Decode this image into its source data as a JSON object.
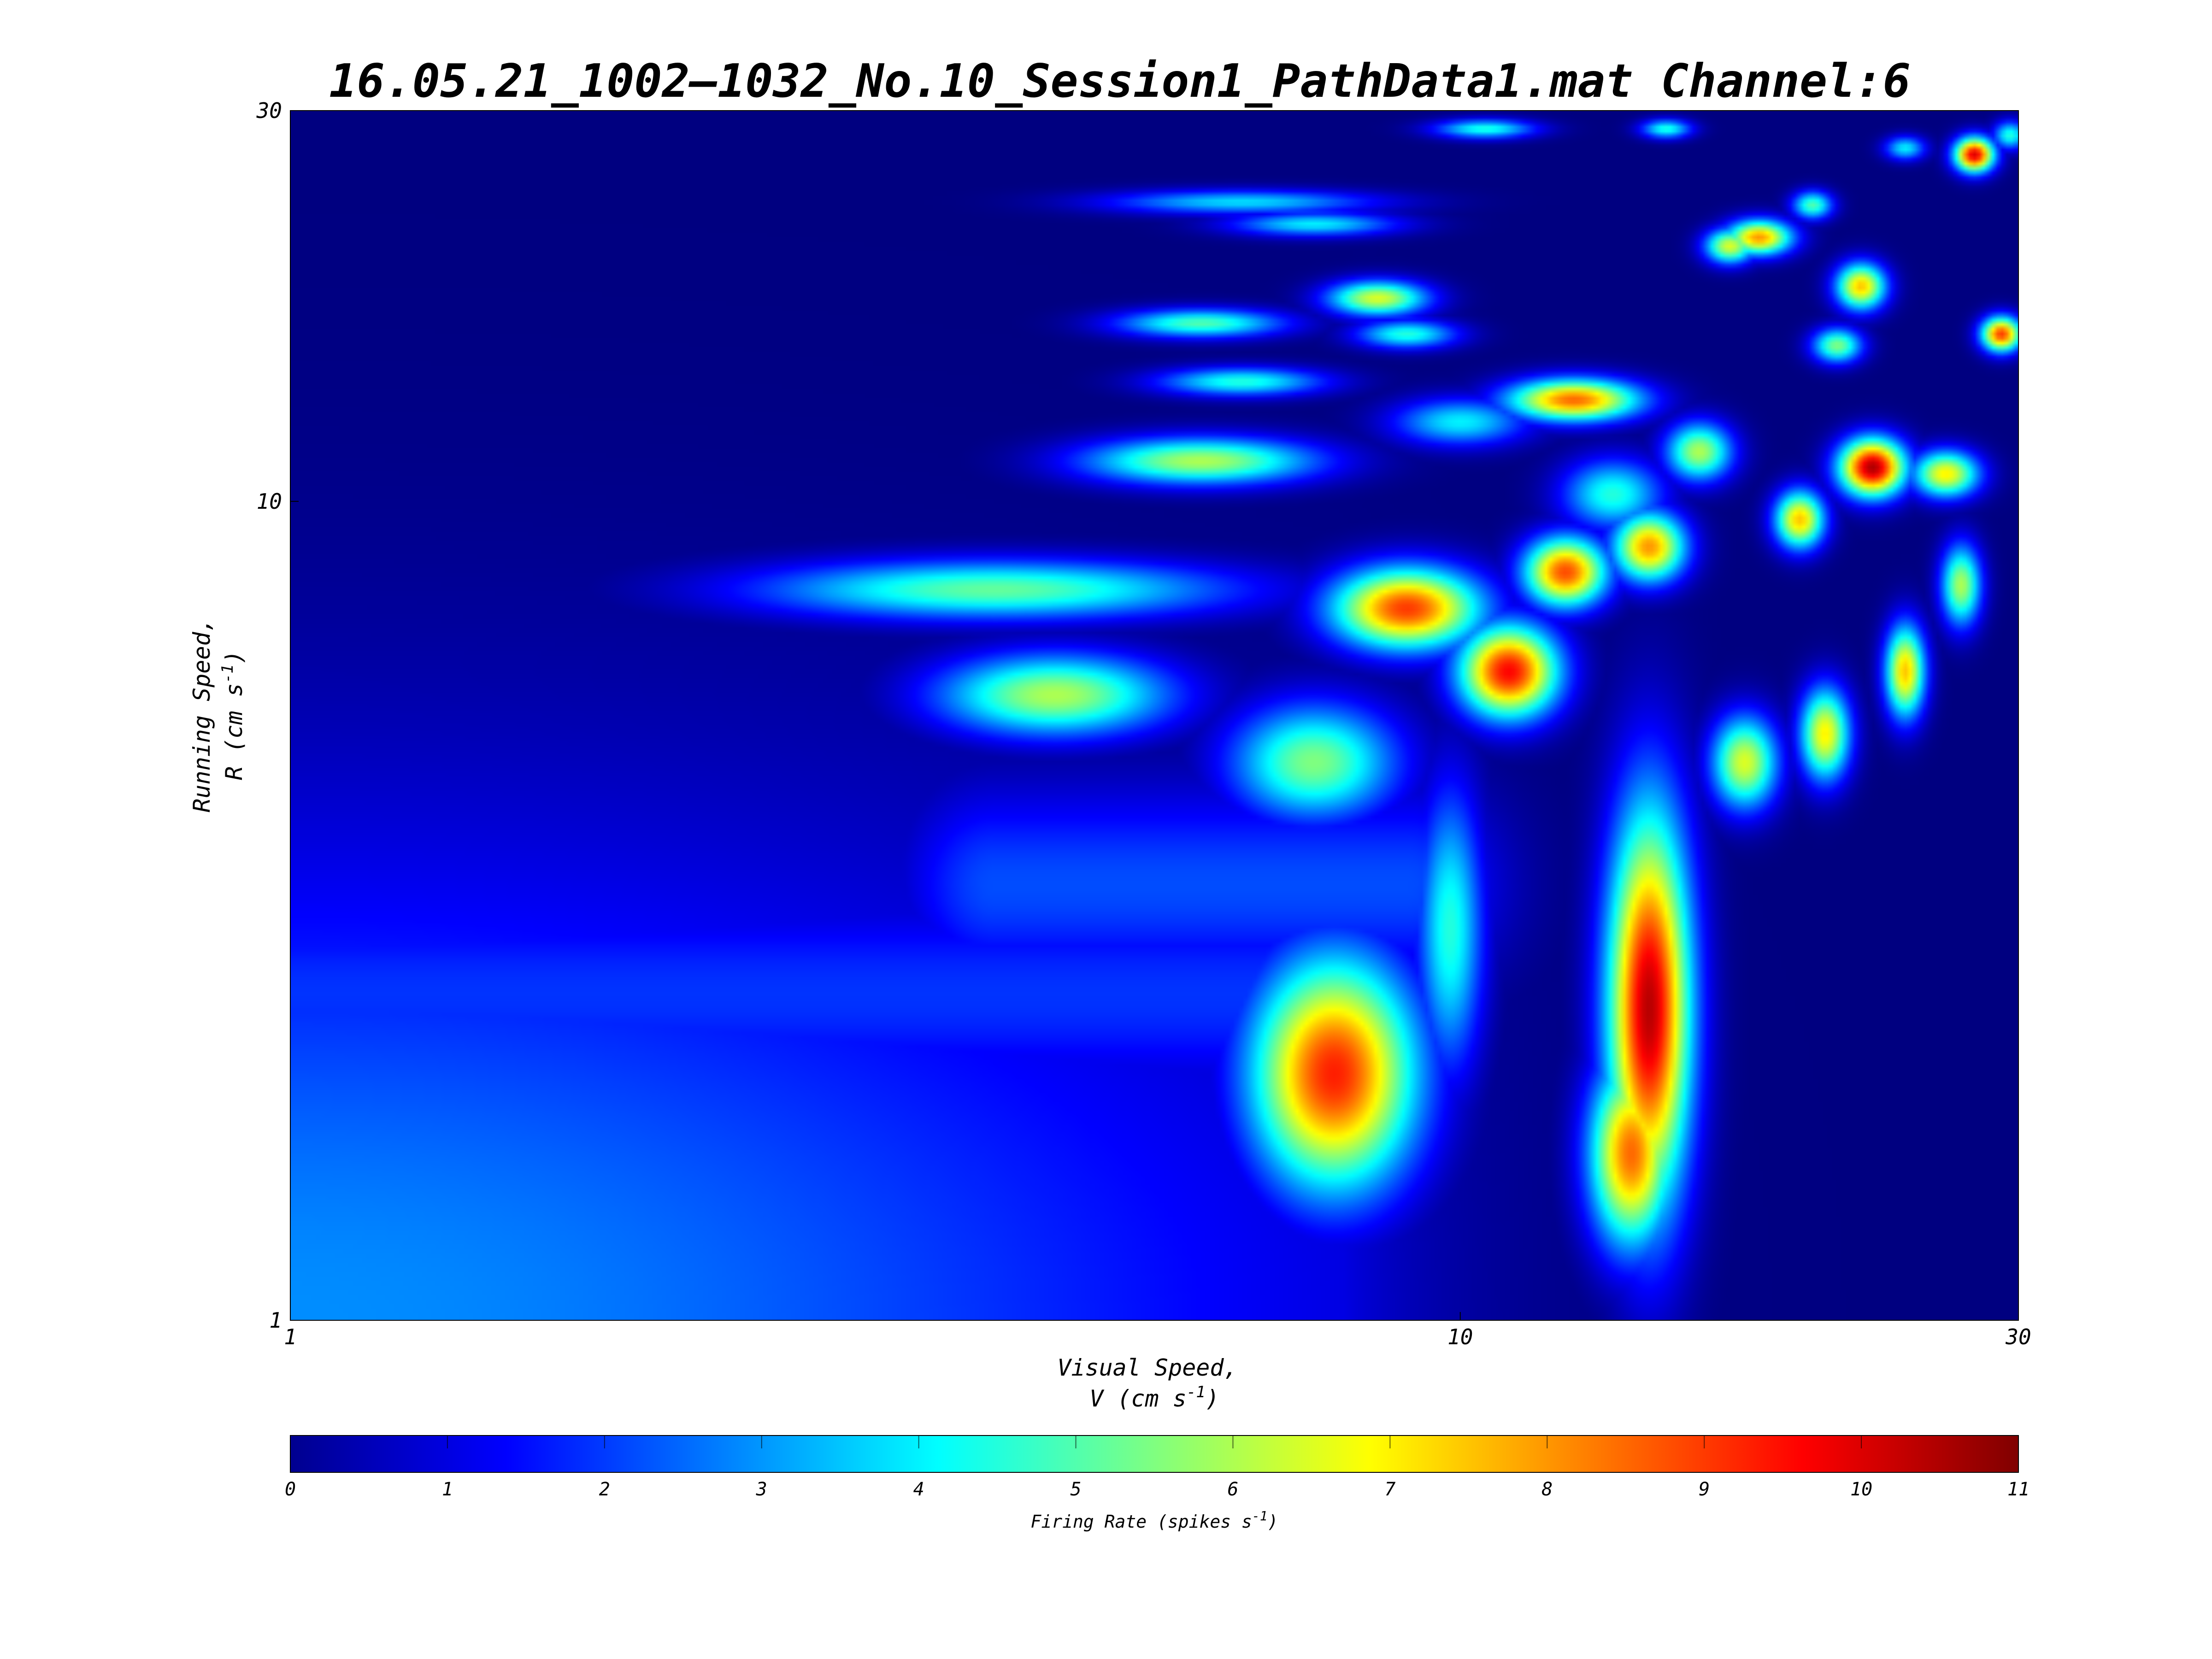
{
  "chart_data": {
    "type": "heatmap",
    "title": "16.05.21_1002–1032_No.10_Session1_PathData1.mat Channel:6",
    "xlabel": [
      "Visual Speed,",
      "V (cm s",
      "-1",
      ")"
    ],
    "ylabel": [
      "Running Speed,",
      "R (cm s",
      "-1",
      ")"
    ],
    "x_scale": "log",
    "y_scale": "log",
    "xlim": [
      1,
      30
    ],
    "ylim": [
      1,
      30
    ],
    "x_ticks": [
      "1",
      "10",
      "30"
    ],
    "x_tick_values": [
      1,
      10,
      30
    ],
    "y_ticks": [
      "1",
      "10",
      "30"
    ],
    "y_tick_values": [
      1,
      10,
      30
    ],
    "colormap": "jet",
    "colorbar": {
      "label": [
        "Firing Rate (spikes s",
        "-1",
        ")"
      ],
      "ticks": [
        "0",
        "1",
        "2",
        "3",
        "4",
        "5",
        "6",
        "7",
        "8",
        "9",
        "10",
        "11"
      ],
      "range": [
        0,
        11
      ],
      "location": "bottom"
    },
    "peaks": [
      {
        "v": 7.8,
        "r": 2.0,
        "rate": 9.3,
        "sv": 0.05,
        "sr": 0.1
      },
      {
        "v": 14.5,
        "r": 2.4,
        "rate": 10.4,
        "sv": 0.025,
        "sr": 0.17
      },
      {
        "v": 14.0,
        "r": 1.6,
        "rate": 8.5,
        "sv": 0.025,
        "sr": 0.08
      },
      {
        "v": 11.0,
        "r": 6.2,
        "rate": 9.6,
        "sv": 0.03,
        "sr": 0.04
      },
      {
        "v": 9.0,
        "r": 7.4,
        "rate": 9.0,
        "sv": 0.045,
        "sr": 0.035
      },
      {
        "v": 12.3,
        "r": 8.2,
        "rate": 8.8,
        "sv": 0.025,
        "sr": 0.03
      },
      {
        "v": 14.5,
        "r": 8.8,
        "rate": 8.0,
        "sv": 0.022,
        "sr": 0.03
      },
      {
        "v": 4.5,
        "r": 5.8,
        "rate": 6.0,
        "sv": 0.07,
        "sr": 0.035
      },
      {
        "v": 7.5,
        "r": 4.8,
        "rate": 5.5,
        "sv": 0.05,
        "sr": 0.05
      },
      {
        "v": 9.8,
        "r": 3.0,
        "rate": 4.5,
        "sv": 0.02,
        "sr": 0.12
      },
      {
        "v": 22.5,
        "r": 11.0,
        "rate": 10.5,
        "sv": 0.02,
        "sr": 0.025
      },
      {
        "v": 26.0,
        "r": 10.8,
        "rate": 7.0,
        "sv": 0.02,
        "sr": 0.02
      },
      {
        "v": 27.5,
        "r": 26.5,
        "rate": 10.0,
        "sv": 0.012,
        "sr": 0.015
      },
      {
        "v": 29.0,
        "r": 16.0,
        "rate": 9.0,
        "sv": 0.012,
        "sr": 0.015
      },
      {
        "v": 12.5,
        "r": 13.3,
        "rate": 8.5,
        "sv": 0.04,
        "sr": 0.018
      },
      {
        "v": 18.0,
        "r": 21.0,
        "rate": 8.0,
        "sv": 0.02,
        "sr": 0.015
      },
      {
        "v": 22.0,
        "r": 18.3,
        "rate": 7.5,
        "sv": 0.015,
        "sr": 0.02
      },
      {
        "v": 19.5,
        "r": 9.5,
        "rate": 7.5,
        "sv": 0.015,
        "sr": 0.025
      },
      {
        "v": 20.5,
        "r": 5.2,
        "rate": 7.0,
        "sv": 0.015,
        "sr": 0.04
      },
      {
        "v": 24.0,
        "r": 6.2,
        "rate": 7.5,
        "sv": 0.012,
        "sr": 0.04
      },
      {
        "v": 17.5,
        "r": 4.8,
        "rate": 6.5,
        "sv": 0.02,
        "sr": 0.04
      },
      {
        "v": 8.5,
        "r": 17.7,
        "rate": 6.5,
        "sv": 0.03,
        "sr": 0.015
      },
      {
        "v": 6.0,
        "r": 11.2,
        "rate": 6.0,
        "sv": 0.07,
        "sr": 0.02
      },
      {
        "v": 6.0,
        "r": 16.5,
        "rate": 5.0,
        "sv": 0.05,
        "sr": 0.012
      },
      {
        "v": 4.0,
        "r": 7.8,
        "rate": 5.2,
        "sv": 0.14,
        "sr": 0.025
      },
      {
        "v": 16.0,
        "r": 11.5,
        "rate": 6.0,
        "sv": 0.02,
        "sr": 0.025
      },
      {
        "v": 26.8,
        "r": 7.9,
        "rate": 6.0,
        "sv": 0.012,
        "sr": 0.035
      },
      {
        "v": 17.0,
        "r": 20.5,
        "rate": 6.5,
        "sv": 0.015,
        "sr": 0.015
      },
      {
        "v": 21.0,
        "r": 15.5,
        "rate": 5.5,
        "sv": 0.015,
        "sr": 0.015
      },
      {
        "v": 13.5,
        "r": 10.2,
        "rate": 4.5,
        "sv": 0.03,
        "sr": 0.03
      },
      {
        "v": 10.5,
        "r": 28.5,
        "rate": 4.5,
        "sv": 0.03,
        "sr": 0.008
      },
      {
        "v": 6.5,
        "r": 23.2,
        "rate": 3.8,
        "sv": 0.08,
        "sr": 0.01
      },
      {
        "v": 7.5,
        "r": 21.8,
        "rate": 4.0,
        "sv": 0.05,
        "sr": 0.01
      },
      {
        "v": 9.0,
        "r": 16.0,
        "rate": 4.5,
        "sv": 0.03,
        "sr": 0.012
      },
      {
        "v": 6.5,
        "r": 14.0,
        "rate": 4.5,
        "sv": 0.05,
        "sr": 0.012
      },
      {
        "v": 10.0,
        "r": 12.5,
        "rate": 4.0,
        "sv": 0.04,
        "sr": 0.02
      },
      {
        "v": 15.0,
        "r": 28.5,
        "rate": 4.5,
        "sv": 0.015,
        "sr": 0.008
      },
      {
        "v": 24.0,
        "r": 27.0,
        "rate": 4.0,
        "sv": 0.012,
        "sr": 0.01
      },
      {
        "v": 20.0,
        "r": 23.0,
        "rate": 5.0,
        "sv": 0.012,
        "sr": 0.012
      },
      {
        "v": 29.5,
        "r": 28.0,
        "rate": 4.5,
        "sv": 0.01,
        "sr": 0.012
      }
    ],
    "ridges": [
      {
        "v_min": 1.0,
        "v_max": 8.0,
        "r": 2.5,
        "rate": 3.5
      },
      {
        "v_min": 4.0,
        "v_max": 9.0,
        "r": 3.4,
        "rate": 4.0
      }
    ]
  }
}
